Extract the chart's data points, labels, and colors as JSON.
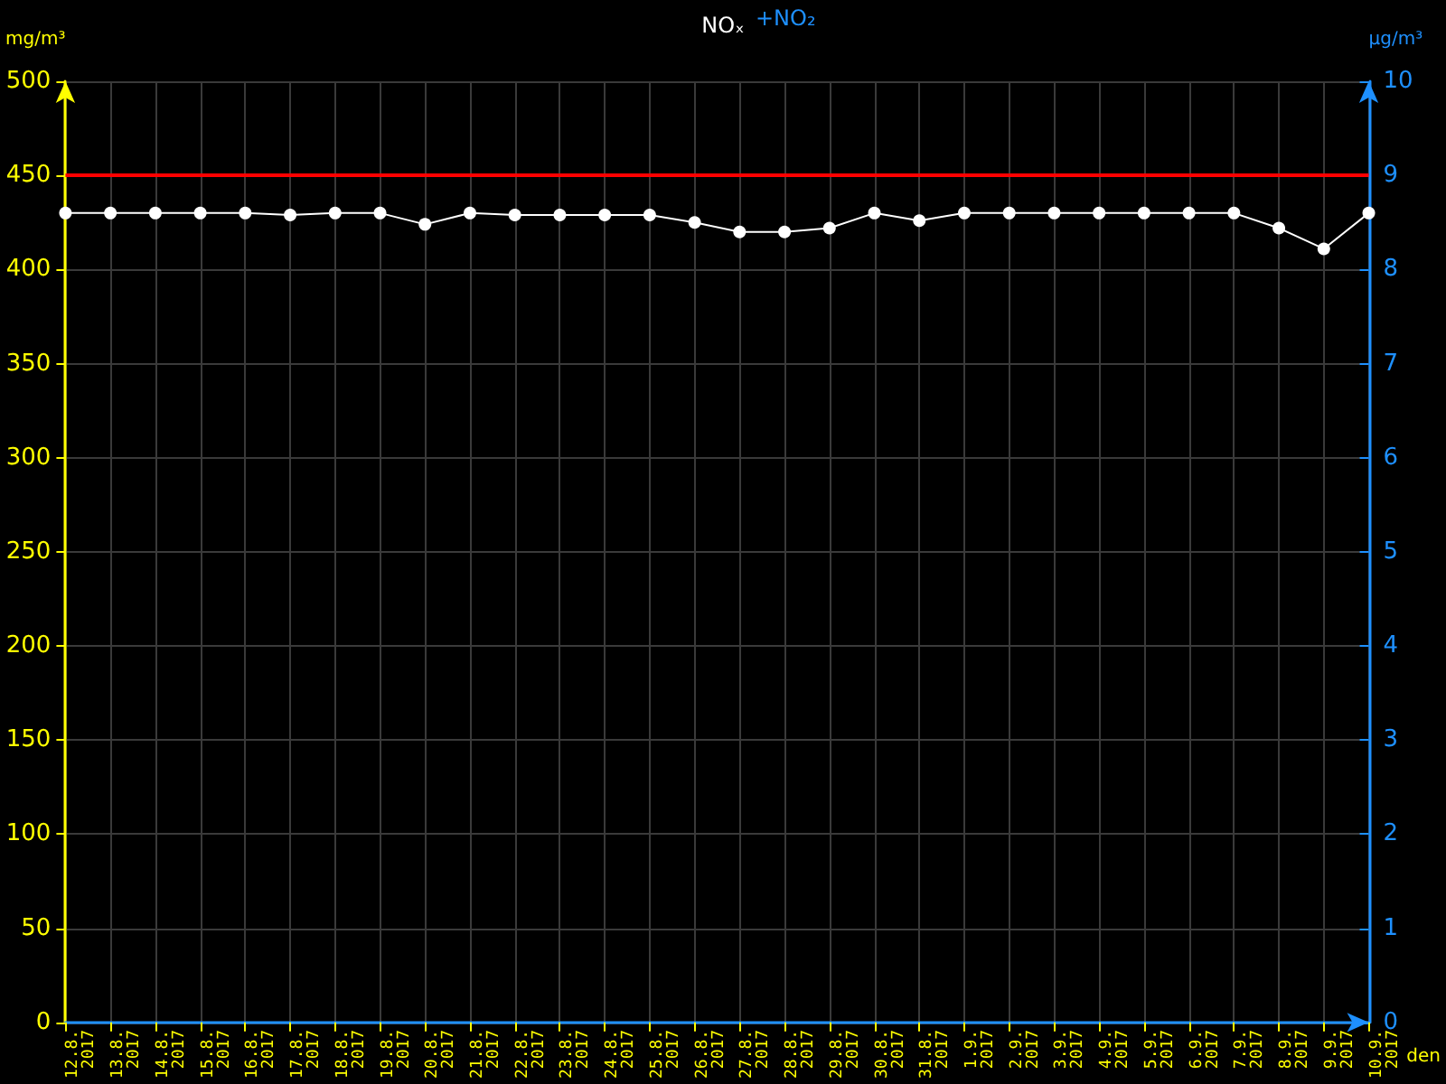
{
  "chart_data": {
    "type": "line",
    "title": "NOₓ",
    "annotations": [
      "+NO₂"
    ],
    "xlabel": "den",
    "ylabel": "mg/m³",
    "y2label": "µg/m³",
    "categories": [
      "12.8. 2017",
      "13.8. 2017",
      "14.8. 2017",
      "15.8. 2017",
      "16.8. 2017",
      "17.8. 2017",
      "18.8. 2017",
      "19.8. 2017",
      "20.8. 2017",
      "21.8. 2017",
      "22.8. 2017",
      "23.8. 2017",
      "24.8. 2017",
      "25.8. 2017",
      "26.8. 2017",
      "27.8. 2017",
      "28.8. 2017",
      "29.8. 2017",
      "30.8. 2017",
      "31.8. 2017",
      "1.9. 2017",
      "2.9. 2017",
      "3.9. 2017",
      "4.9. 2017",
      "5.9. 2017",
      "6.9. 2017",
      "7.9. 2017",
      "8.9. 2017",
      "9.9. 2017",
      "10.9. 2017"
    ],
    "series": [
      {
        "color": "#ffffff",
        "values": [
          430,
          430,
          430,
          430,
          430,
          429,
          430,
          430,
          424,
          430,
          429,
          429,
          429,
          429,
          425,
          420,
          420,
          422,
          430,
          426,
          430,
          430,
          430,
          430,
          430,
          430,
          430,
          422,
          411,
          430
        ]
      }
    ],
    "ylim": [
      0,
      500
    ],
    "yticks": [
      0,
      50,
      100,
      150,
      200,
      250,
      300,
      350,
      400,
      450,
      500
    ],
    "y2lim": [
      0,
      10
    ],
    "y2ticks": [
      0,
      1,
      2,
      3,
      4,
      5,
      6,
      7,
      8,
      9,
      10
    ],
    "ref_lines": [
      {
        "axis": "y",
        "value": 450,
        "color": "#ff0000"
      }
    ],
    "grid": true,
    "marker": "circle",
    "line_style": "solid"
  }
}
